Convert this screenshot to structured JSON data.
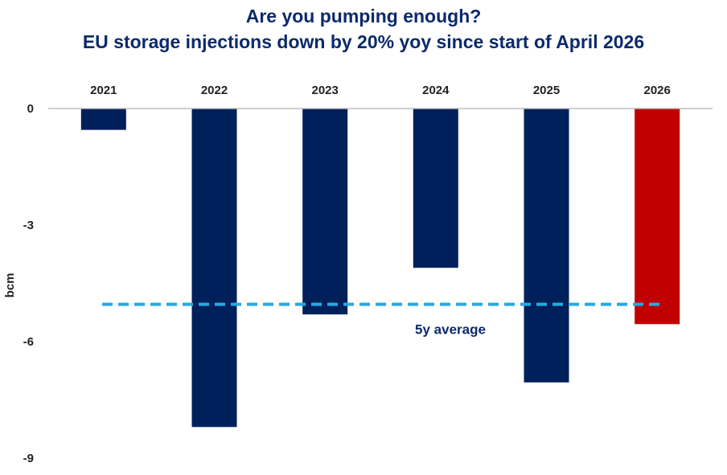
{
  "chart_data": {
    "type": "bar",
    "title": "Are you pumping enough?",
    "subtitle": "EU storage injections down by 20% yoy since start of April 2026",
    "ylabel": "bcm",
    "xlabel": "",
    "categories": [
      "2021",
      "2022",
      "2023",
      "2024",
      "2025",
      "2026"
    ],
    "values": [
      -0.55,
      -8.2,
      -5.3,
      -4.1,
      -7.05,
      -5.55
    ],
    "bar_colors": [
      "#00205b",
      "#00205b",
      "#00205b",
      "#00205b",
      "#00205b",
      "#c00000"
    ],
    "ylim": [
      -9,
      0
    ],
    "yticks": [
      "0",
      "-3",
      "-6",
      "-9"
    ],
    "ytick_values": [
      0,
      -3,
      -6,
      -9
    ],
    "grid": false,
    "legend": "none",
    "x_axis_position": "top",
    "reference_line": {
      "label": "5y average",
      "value": -5.04,
      "color": "#29a8e0",
      "style": "dashed"
    }
  }
}
